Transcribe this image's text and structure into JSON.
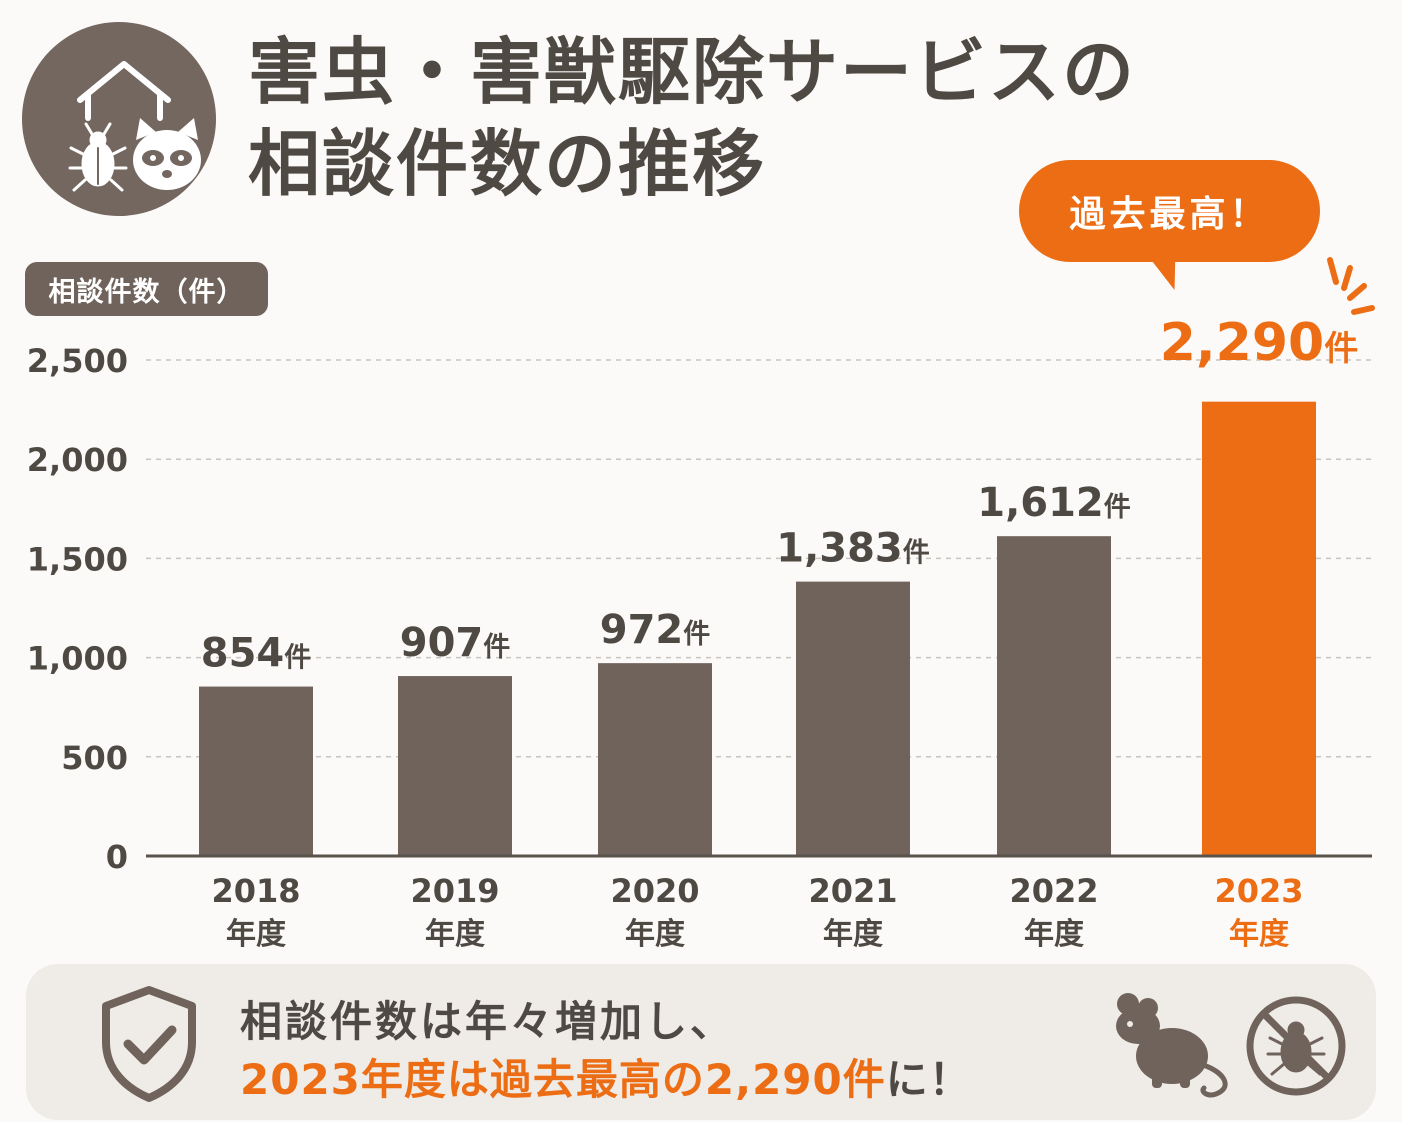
{
  "title": {
    "line1": "害虫・害獣駆除サービスの",
    "line2": "相談件数の推移"
  },
  "badge": "過去最高！",
  "y_axis_badge": "相談件数（件）",
  "colors": {
    "bar": "#6f635c",
    "highlight": "#ec6d13",
    "text": "#4f4944",
    "grid": "#c9c4bf"
  },
  "icons": [
    "house-icon",
    "beetle-icon",
    "raccoon-icon",
    "shield-check-icon",
    "mouse-icon",
    "no-bug-icon",
    "burst-lines-icon"
  ],
  "chart_data": {
    "type": "bar",
    "categories": [
      "2018",
      "2019",
      "2020",
      "2021",
      "2022",
      "2023"
    ],
    "category_suffix": "年度",
    "values": [
      854,
      907,
      972,
      1383,
      1612,
      2290
    ],
    "data_labels": [
      "854",
      "907",
      "972",
      "1,383",
      "1,612",
      "2,290"
    ],
    "value_unit": "件",
    "highlight_index": 5,
    "ylim": [
      0,
      2500
    ],
    "yticks": [
      "0",
      "500",
      "1,000",
      "1,500",
      "2,000",
      "2,500"
    ],
    "ytick_values": [
      0,
      500,
      1000,
      1500,
      2000,
      2500
    ],
    "grid": true
  },
  "summary": {
    "line1": "相談件数は年々増加し、",
    "line2": "2023年度は過去最高の2,290件",
    "line2_tail": "に！"
  }
}
